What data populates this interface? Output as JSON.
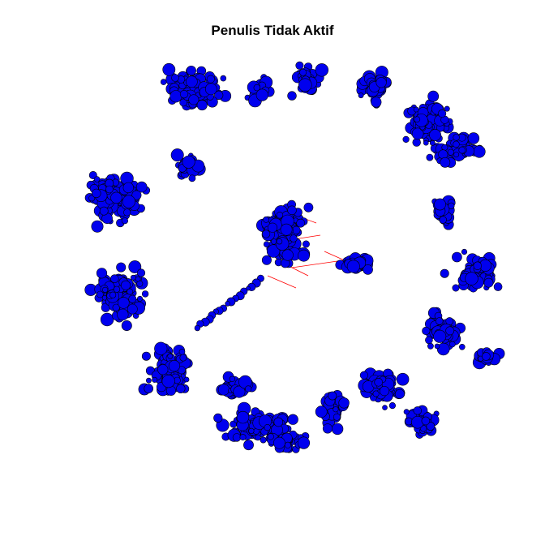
{
  "title": "Penulis Tidak Aktif",
  "colors": {
    "node_fill": "#0000ee",
    "node_stroke": "#000000",
    "edge": "#ff0000",
    "background": "#ffffff"
  }
}
